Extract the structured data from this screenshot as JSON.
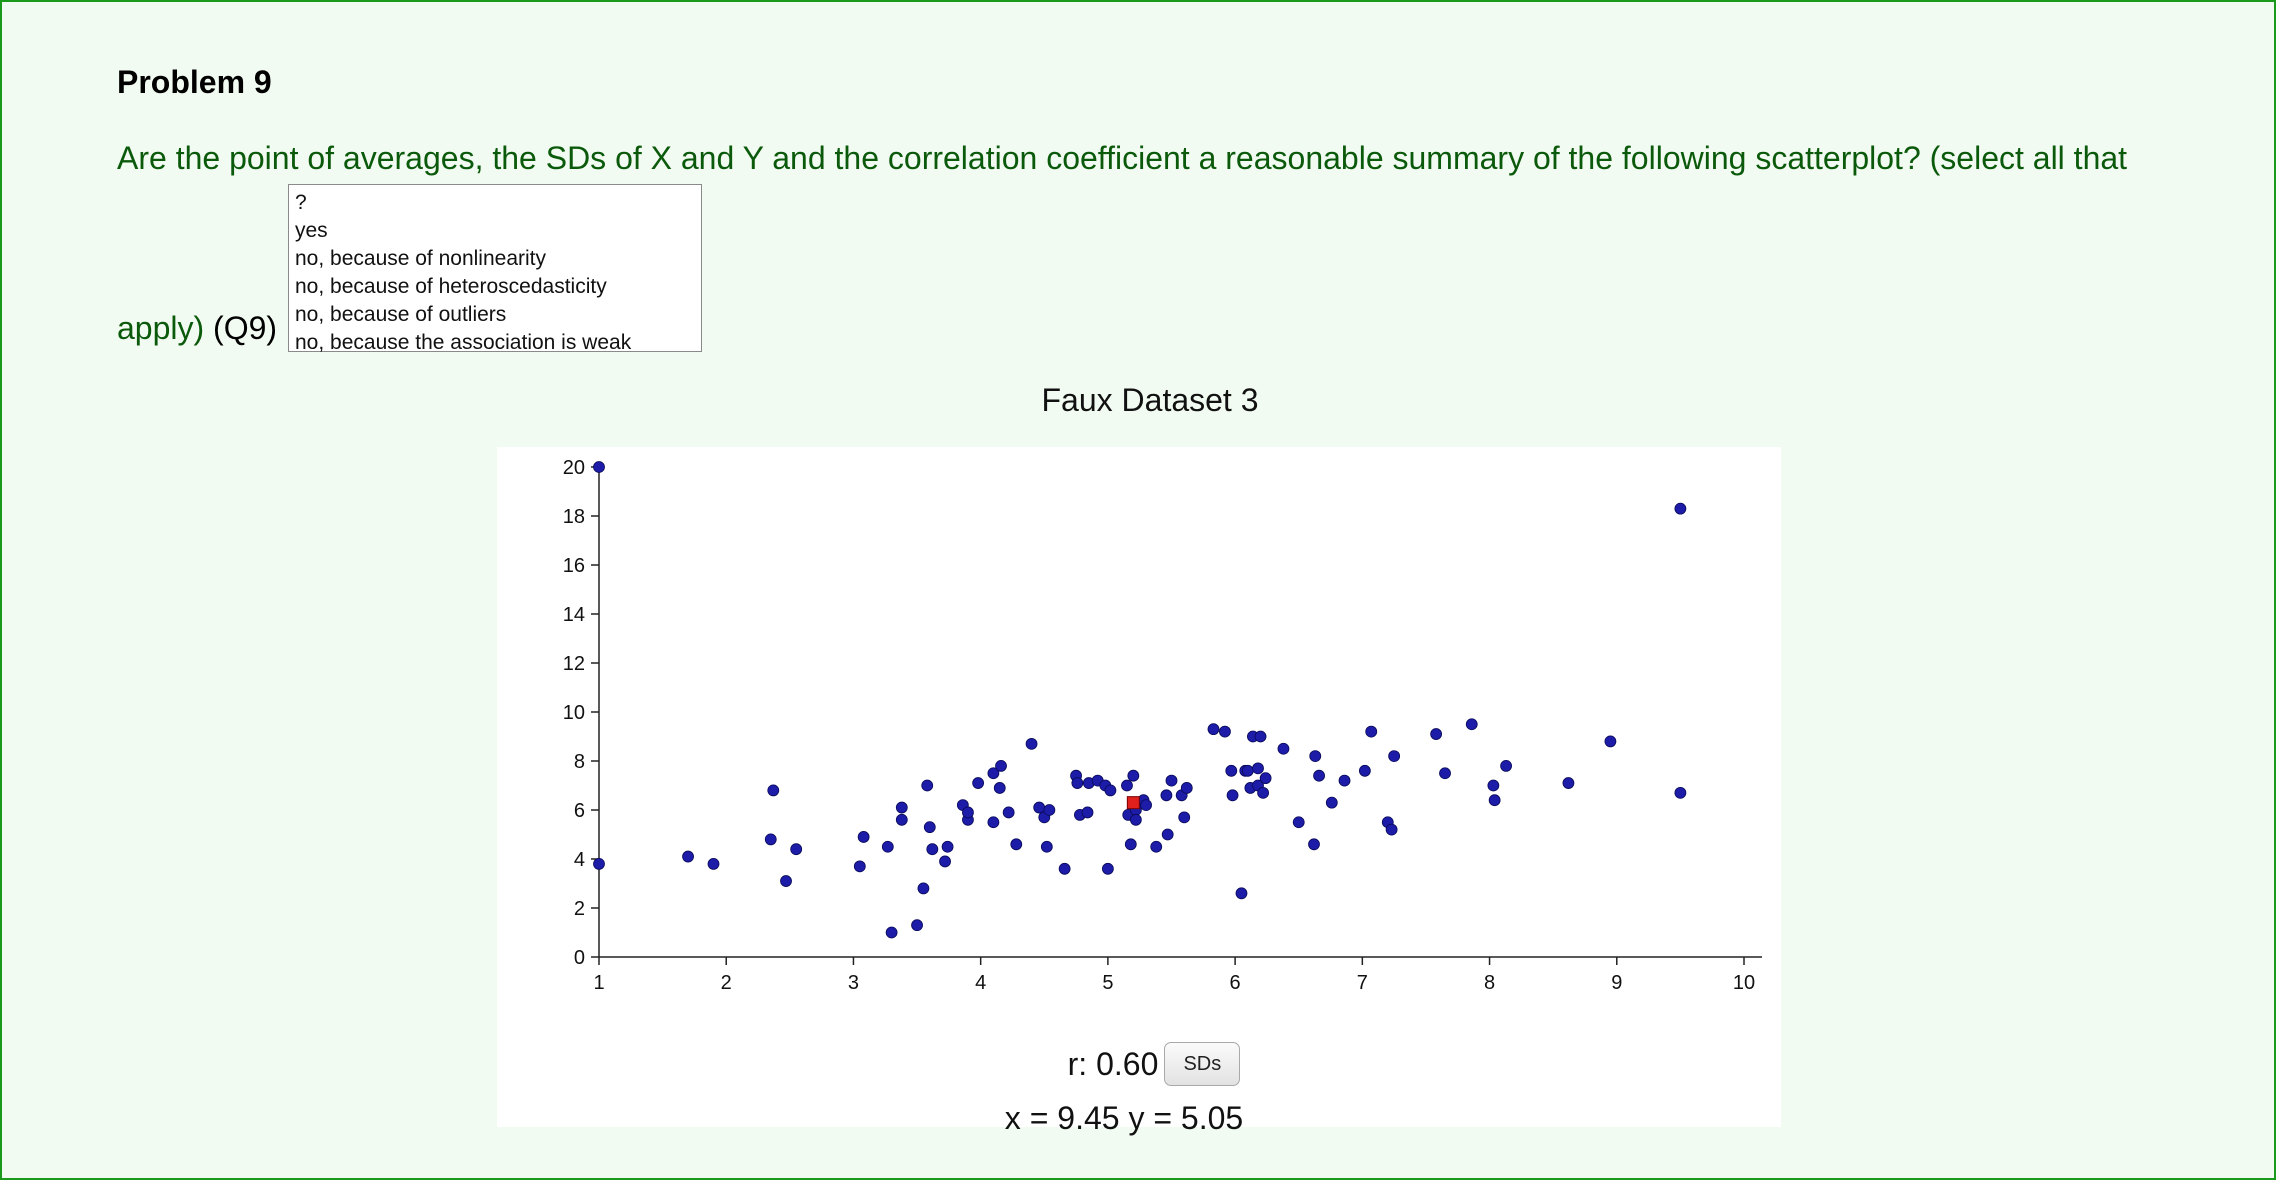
{
  "problem": {
    "title": "Problem 9",
    "question_line1": "Are the point of averages, the SDs of X and Y and the correlation coefficient a reasonable summary of the following scatterplot? (select all that",
    "question_apply": "apply)",
    "question_id": "(Q9)"
  },
  "answer_options": [
    "?",
    "yes",
    "no, because of nonlinearity",
    "no, because of heteroscedasticity",
    "no, because of outliers",
    "no, because the association is weak"
  ],
  "stats": {
    "r_label": "r: 0.60",
    "sd_button": "SDs",
    "coords": "x = 9.45 y = 5.05"
  },
  "colors": {
    "point": "#1c1ca8",
    "point_of_averages": "#e0201c",
    "frame_border": "#1a9a1a",
    "question_text": "#0b5a0b"
  },
  "chart_data": {
    "type": "scatter",
    "title": "Faux Dataset 3",
    "xlim": [
      1,
      10
    ],
    "ylim": [
      0,
      20
    ],
    "xticks": [
      1,
      2,
      3,
      4,
      5,
      6,
      7,
      8,
      9,
      10
    ],
    "yticks": [
      0,
      2,
      4,
      6,
      8,
      10,
      12,
      14,
      16,
      18,
      20
    ],
    "point_of_averages": {
      "x": 5.2,
      "y": 6.3
    },
    "points": [
      {
        "x": 1.0,
        "y": 20.0
      },
      {
        "x": 1.0,
        "y": 3.8
      },
      {
        "x": 1.7,
        "y": 4.1
      },
      {
        "x": 1.9,
        "y": 3.8
      },
      {
        "x": 2.35,
        "y": 4.8
      },
      {
        "x": 2.37,
        "y": 6.8
      },
      {
        "x": 2.47,
        "y": 3.1
      },
      {
        "x": 2.55,
        "y": 4.4
      },
      {
        "x": 3.05,
        "y": 3.7
      },
      {
        "x": 3.08,
        "y": 4.9
      },
      {
        "x": 3.27,
        "y": 4.5
      },
      {
        "x": 3.3,
        "y": 1.0
      },
      {
        "x": 3.38,
        "y": 6.1
      },
      {
        "x": 3.38,
        "y": 5.6
      },
      {
        "x": 3.5,
        "y": 1.3
      },
      {
        "x": 3.55,
        "y": 2.8
      },
      {
        "x": 3.58,
        "y": 7.0
      },
      {
        "x": 3.6,
        "y": 5.3
      },
      {
        "x": 3.62,
        "y": 4.4
      },
      {
        "x": 3.72,
        "y": 3.9
      },
      {
        "x": 3.74,
        "y": 4.5
      },
      {
        "x": 3.86,
        "y": 6.2
      },
      {
        "x": 3.9,
        "y": 5.6
      },
      {
        "x": 3.9,
        "y": 5.9
      },
      {
        "x": 3.98,
        "y": 7.1
      },
      {
        "x": 4.1,
        "y": 5.5
      },
      {
        "x": 4.1,
        "y": 7.5
      },
      {
        "x": 4.15,
        "y": 6.9
      },
      {
        "x": 4.16,
        "y": 7.8
      },
      {
        "x": 4.22,
        "y": 5.9
      },
      {
        "x": 4.28,
        "y": 4.6
      },
      {
        "x": 4.4,
        "y": 8.7
      },
      {
        "x": 4.46,
        "y": 6.1
      },
      {
        "x": 4.5,
        "y": 5.7
      },
      {
        "x": 4.52,
        "y": 4.5
      },
      {
        "x": 4.54,
        "y": 6.0
      },
      {
        "x": 4.66,
        "y": 3.6
      },
      {
        "x": 4.75,
        "y": 7.4
      },
      {
        "x": 4.76,
        "y": 7.1
      },
      {
        "x": 4.78,
        "y": 5.8
      },
      {
        "x": 4.84,
        "y": 5.9
      },
      {
        "x": 4.85,
        "y": 7.1
      },
      {
        "x": 4.92,
        "y": 7.2
      },
      {
        "x": 4.98,
        "y": 7.0
      },
      {
        "x": 5.0,
        "y": 3.6
      },
      {
        "x": 5.02,
        "y": 6.8
      },
      {
        "x": 5.15,
        "y": 7.0
      },
      {
        "x": 5.16,
        "y": 5.8
      },
      {
        "x": 5.18,
        "y": 4.6
      },
      {
        "x": 5.2,
        "y": 7.4
      },
      {
        "x": 5.22,
        "y": 6.0
      },
      {
        "x": 5.22,
        "y": 5.6
      },
      {
        "x": 5.25,
        "y": 6.3
      },
      {
        "x": 5.28,
        "y": 6.4
      },
      {
        "x": 5.3,
        "y": 6.2
      },
      {
        "x": 5.38,
        "y": 4.5
      },
      {
        "x": 5.46,
        "y": 6.6
      },
      {
        "x": 5.47,
        "y": 5.0
      },
      {
        "x": 5.5,
        "y": 7.2
      },
      {
        "x": 5.58,
        "y": 6.6
      },
      {
        "x": 5.6,
        "y": 5.7
      },
      {
        "x": 5.62,
        "y": 6.9
      },
      {
        "x": 5.83,
        "y": 9.3
      },
      {
        "x": 5.92,
        "y": 9.2
      },
      {
        "x": 5.97,
        "y": 7.6
      },
      {
        "x": 5.98,
        "y": 6.6
      },
      {
        "x": 6.05,
        "y": 2.6
      },
      {
        "x": 6.08,
        "y": 7.6
      },
      {
        "x": 6.1,
        "y": 7.6
      },
      {
        "x": 6.12,
        "y": 6.9
      },
      {
        "x": 6.14,
        "y": 9.0
      },
      {
        "x": 6.18,
        "y": 7.7
      },
      {
        "x": 6.18,
        "y": 7.0
      },
      {
        "x": 6.2,
        "y": 9.0
      },
      {
        "x": 6.22,
        "y": 6.7
      },
      {
        "x": 6.24,
        "y": 7.3
      },
      {
        "x": 6.38,
        "y": 8.5
      },
      {
        "x": 6.5,
        "y": 5.5
      },
      {
        "x": 6.62,
        "y": 4.6
      },
      {
        "x": 6.63,
        "y": 8.2
      },
      {
        "x": 6.66,
        "y": 7.4
      },
      {
        "x": 6.76,
        "y": 6.3
      },
      {
        "x": 6.86,
        "y": 7.2
      },
      {
        "x": 7.02,
        "y": 7.6
      },
      {
        "x": 7.07,
        "y": 9.2
      },
      {
        "x": 7.2,
        "y": 5.5
      },
      {
        "x": 7.23,
        "y": 5.2
      },
      {
        "x": 7.25,
        "y": 8.2
      },
      {
        "x": 7.58,
        "y": 9.1
      },
      {
        "x": 7.65,
        "y": 7.5
      },
      {
        "x": 7.86,
        "y": 9.5
      },
      {
        "x": 8.03,
        "y": 7.0
      },
      {
        "x": 8.04,
        "y": 6.4
      },
      {
        "x": 8.13,
        "y": 7.8
      },
      {
        "x": 8.62,
        "y": 7.1
      },
      {
        "x": 8.95,
        "y": 8.8
      },
      {
        "x": 9.5,
        "y": 18.3
      },
      {
        "x": 9.5,
        "y": 6.7
      }
    ]
  }
}
